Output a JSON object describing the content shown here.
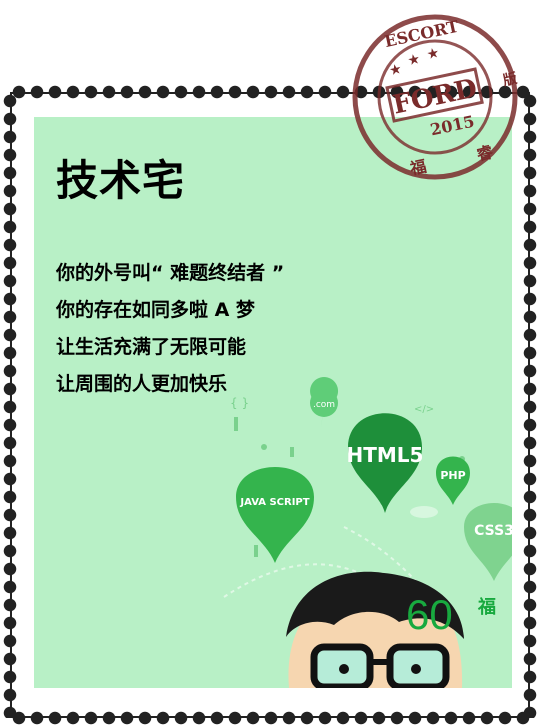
{
  "heading": "技术宅",
  "lines": [
    "你的外号叫“ 难题终结者 ”",
    "你的存在如同多啦 A 梦",
    "让生活充满了无限可能",
    "让周围的人更加快乐"
  ],
  "price": {
    "value": "60",
    "unit": "福"
  },
  "postmark": {
    "top_text": "ESCORT",
    "center_text": "FORD",
    "year": "2015",
    "bottom_left": "福",
    "bottom_right": "睿",
    "side": "版"
  },
  "illustration": {
    "bubbles": [
      "HTML5",
      "PHP",
      "JAVA SCRIPT",
      "CSS3",
      ".com"
    ],
    "colors": {
      "panel": "#b8f0c6",
      "bubble_dark": "#1e8f3a",
      "bubble_mid": "#34b44d",
      "bubble_light": "#7fd38f",
      "postmark": "#7a2b2b",
      "price": "#18a93f"
    }
  }
}
